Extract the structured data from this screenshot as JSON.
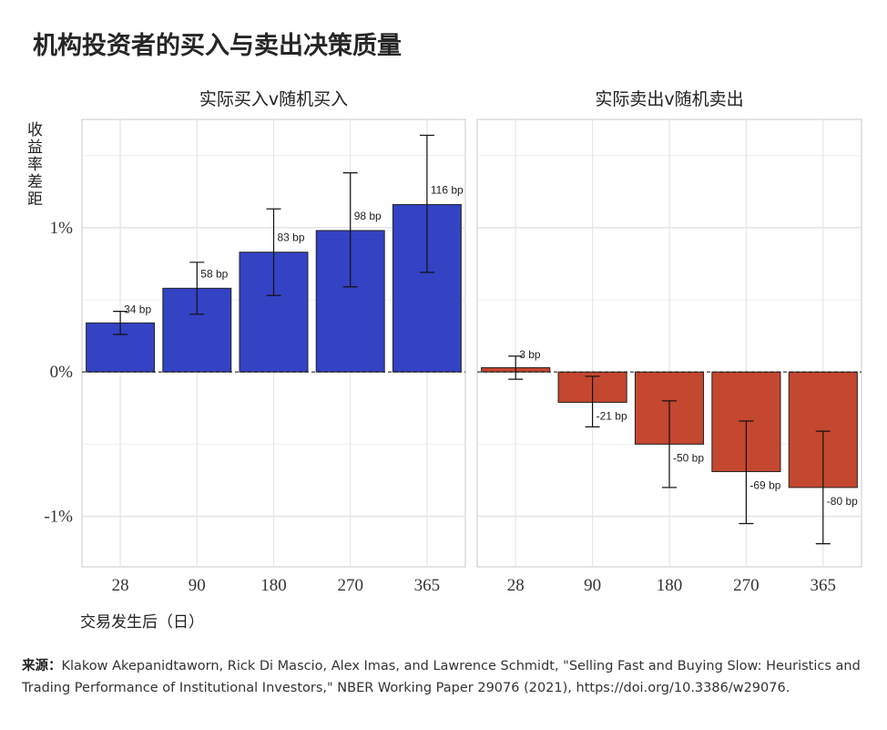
{
  "title": "机构投资者的买入与卖出决策质量",
  "source_label": "来源：",
  "source_text": "Klakow Akepanidtaworn, Rick Di Mascio, Alex Imas, and Lawrence Schmidt, \"Selling Fast and Buying Slow: Heuristics and Trading Performance of Institutional Investors,\" NBER Working Paper 29076 (2021), https://doi.org/10.3386/w29076.",
  "chart_data": {
    "type": "bar",
    "ylabel": "收益率差距",
    "xlabel": "交易发生后（日）",
    "ylim": [
      -1.35,
      1.75
    ],
    "yticks": [
      1,
      0,
      -1
    ],
    "ytick_labels": [
      "1%",
      "0%",
      "-1%"
    ],
    "categories": [
      "28",
      "90",
      "180",
      "270",
      "365"
    ],
    "panels": [
      {
        "title": "实际买入v随机买入",
        "color": "#3442c4",
        "values": [
          0.34,
          0.58,
          0.83,
          0.98,
          1.16
        ],
        "err_low": [
          0.26,
          0.4,
          0.53,
          0.59,
          0.69
        ],
        "err_high": [
          0.42,
          0.76,
          1.13,
          1.38,
          1.64
        ],
        "labels": [
          "34 bp",
          "58 bp",
          "83 bp",
          "98 bp",
          "116 bp"
        ]
      },
      {
        "title": "实际卖出v随机卖出",
        "color": "#c4472f",
        "values": [
          0.03,
          -0.21,
          -0.5,
          -0.69,
          -0.8
        ],
        "err_low": [
          -0.05,
          -0.38,
          -0.8,
          -1.05,
          -1.19
        ],
        "err_high": [
          0.11,
          -0.03,
          -0.2,
          -0.34,
          -0.41
        ],
        "labels": [
          "3 bp",
          "-21 bp",
          "-50 bp",
          "-69 bp",
          "-80 bp"
        ]
      }
    ]
  }
}
